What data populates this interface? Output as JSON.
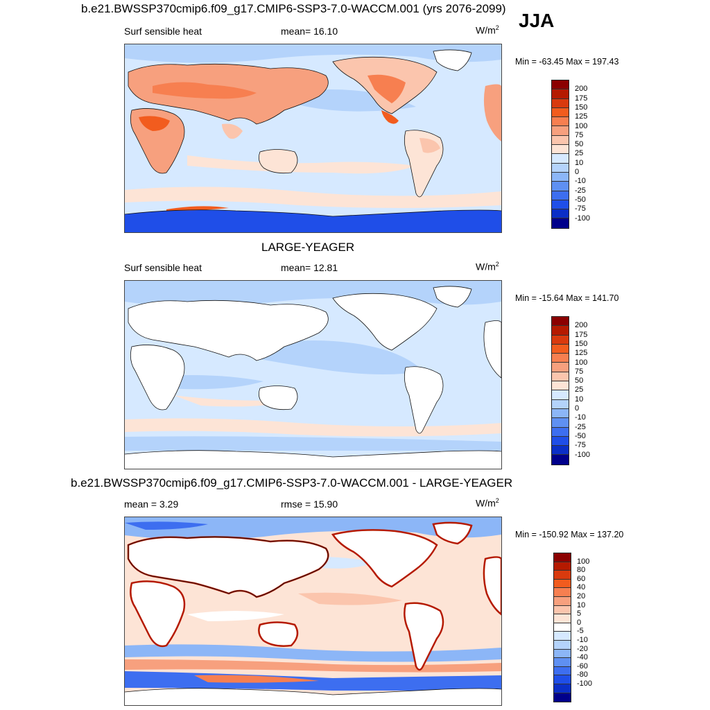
{
  "season": "JJA",
  "panels": [
    {
      "title": "b.e21.BWSSP370cmip6.f09_g17.CMIP6-SSP3-7.0-WACCM.001 (yrs 2076-2099)",
      "variable": "Surf sensible heat",
      "stat1": "mean=  16.10",
      "stat2": "",
      "units": "W/m",
      "units_exp": "2",
      "minmax": "Min = -63.45 Max = 197.43",
      "colorbar": {
        "colors": [
          "#8b0000",
          "#b51a00",
          "#d93a0e",
          "#f25c1e",
          "#f77f50",
          "#f7a07e",
          "#fbc5ad",
          "#fde4d6",
          "#d6e9ff",
          "#b4d3fb",
          "#8cb6f7",
          "#5f90f2",
          "#3d6ef0",
          "#1f4ee8",
          "#0b2fc7",
          "#00008b"
        ],
        "labels": [
          "200",
          "175",
          "150",
          "125",
          "100",
          "75",
          "50",
          "25",
          "10",
          "0",
          "-10",
          "-25",
          "-50",
          "-75",
          "-100"
        ]
      }
    },
    {
      "title": "LARGE-YEAGER",
      "variable": "Surf sensible heat",
      "stat1": "mean=  12.81",
      "stat2": "",
      "units": "W/m",
      "units_exp": "2",
      "minmax": "Min = -15.64 Max = 141.70",
      "colorbar": {
        "colors": [
          "#8b0000",
          "#b51a00",
          "#d93a0e",
          "#f25c1e",
          "#f77f50",
          "#f7a07e",
          "#fbc5ad",
          "#fde4d6",
          "#d6e9ff",
          "#b4d3fb",
          "#8cb6f7",
          "#5f90f2",
          "#3d6ef0",
          "#1f4ee8",
          "#0b2fc7",
          "#00008b"
        ],
        "labels": [
          "200",
          "175",
          "150",
          "125",
          "100",
          "75",
          "50",
          "25",
          "10",
          "0",
          "-10",
          "-25",
          "-50",
          "-75",
          "-100"
        ]
      }
    },
    {
      "title": "b.e21.BWSSP370cmip6.f09_g17.CMIP6-SSP3-7.0-WACCM.001 - LARGE-YEAGER",
      "variable": "mean =   3.29",
      "stat1": "rmse =  15.90",
      "stat2": "",
      "units": "W/m",
      "units_exp": "2",
      "minmax": "Min = -150.92 Max = 137.20",
      "colorbar": {
        "colors": [
          "#8b0000",
          "#b51a00",
          "#d93a0e",
          "#f25c1e",
          "#f77f50",
          "#f7a07e",
          "#fbc5ad",
          "#fde4d6",
          "#ffffff",
          "#d6e9ff",
          "#b4d3fb",
          "#8cb6f7",
          "#5f90f2",
          "#3d6ef0",
          "#1f4ee8",
          "#0b2fc7",
          "#00008b"
        ],
        "labels": [
          "100",
          "80",
          "60",
          "40",
          "20",
          "10",
          "5",
          "0",
          "-5",
          "-10",
          "-20",
          "-40",
          "-60",
          "-80",
          "-100"
        ]
      }
    }
  ]
}
